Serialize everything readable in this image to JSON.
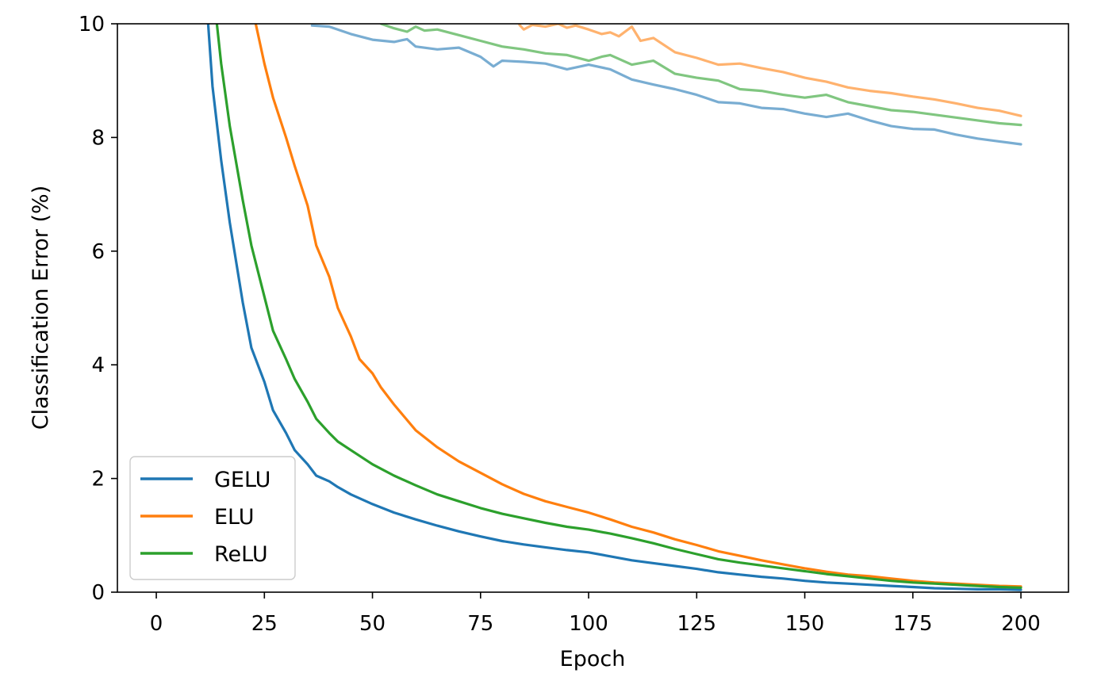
{
  "chart_data": {
    "type": "line",
    "xlabel": "Epoch",
    "ylabel": "Classification Error (%)",
    "xlim": [
      -9,
      211
    ],
    "ylim": [
      0,
      10
    ],
    "xticks": [
      0,
      25,
      50,
      75,
      100,
      125,
      150,
      175,
      200
    ],
    "yticks": [
      0,
      2,
      4,
      6,
      8,
      10
    ],
    "grid": false,
    "legend_position": "lower-left",
    "train_series": [
      {
        "name": "GELU",
        "color": "#1f77b4",
        "x": [
          12,
          13,
          15,
          17,
          20,
          22,
          25,
          27,
          30,
          32,
          35,
          37,
          40,
          42,
          45,
          50,
          55,
          60,
          65,
          70,
          75,
          80,
          85,
          90,
          95,
          100,
          105,
          110,
          115,
          120,
          125,
          130,
          135,
          140,
          145,
          150,
          155,
          160,
          165,
          170,
          175,
          180,
          185,
          190,
          195,
          200
        ],
        "y": [
          10,
          8.9,
          7.6,
          6.5,
          5.1,
          4.3,
          3.7,
          3.2,
          2.8,
          2.5,
          2.25,
          2.05,
          1.95,
          1.85,
          1.72,
          1.55,
          1.4,
          1.28,
          1.17,
          1.07,
          0.98,
          0.9,
          0.84,
          0.79,
          0.74,
          0.7,
          0.63,
          0.56,
          0.51,
          0.46,
          0.41,
          0.35,
          0.31,
          0.27,
          0.24,
          0.2,
          0.17,
          0.15,
          0.13,
          0.11,
          0.09,
          0.07,
          0.06,
          0.05,
          0.05,
          0.04
        ]
      },
      {
        "name": "ELU",
        "color": "#ff7f0e",
        "x": [
          23,
          25,
          27,
          30,
          32,
          35,
          37,
          40,
          42,
          45,
          47,
          50,
          52,
          55,
          60,
          65,
          70,
          75,
          80,
          85,
          90,
          95,
          100,
          105,
          110,
          115,
          120,
          125,
          130,
          135,
          140,
          145,
          150,
          155,
          160,
          165,
          170,
          175,
          180,
          185,
          190,
          195,
          200
        ],
        "y": [
          10,
          9.3,
          8.7,
          8.0,
          7.5,
          6.8,
          6.1,
          5.55,
          5.0,
          4.5,
          4.1,
          3.85,
          3.6,
          3.3,
          2.85,
          2.55,
          2.3,
          2.1,
          1.9,
          1.73,
          1.6,
          1.5,
          1.4,
          1.28,
          1.15,
          1.05,
          0.93,
          0.83,
          0.72,
          0.64,
          0.56,
          0.49,
          0.42,
          0.36,
          0.31,
          0.28,
          0.24,
          0.2,
          0.17,
          0.15,
          0.13,
          0.11,
          0.1
        ]
      },
      {
        "name": "ReLU",
        "color": "#2ca02c",
        "x": [
          14,
          15,
          17,
          20,
          22,
          25,
          27,
          30,
          32,
          35,
          37,
          40,
          42,
          45,
          50,
          55,
          60,
          65,
          70,
          75,
          80,
          85,
          90,
          95,
          100,
          105,
          110,
          115,
          120,
          125,
          130,
          135,
          140,
          145,
          150,
          155,
          160,
          165,
          170,
          175,
          180,
          185,
          190,
          195,
          200
        ],
        "y": [
          10,
          9.3,
          8.2,
          6.9,
          6.1,
          5.2,
          4.6,
          4.1,
          3.75,
          3.35,
          3.05,
          2.8,
          2.65,
          2.5,
          2.25,
          2.05,
          1.88,
          1.72,
          1.6,
          1.48,
          1.38,
          1.3,
          1.22,
          1.15,
          1.1,
          1.03,
          0.95,
          0.86,
          0.76,
          0.67,
          0.58,
          0.52,
          0.47,
          0.42,
          0.37,
          0.32,
          0.28,
          0.24,
          0.2,
          0.17,
          0.15,
          0.13,
          0.11,
          0.09,
          0.08
        ]
      }
    ],
    "test_series": [
      {
        "color": "#1f77b4",
        "x": [
          36,
          40,
          45,
          50,
          55,
          58,
          60,
          65,
          70,
          75,
          78,
          80,
          85,
          90,
          95,
          100,
          105,
          110,
          115,
          120,
          125,
          130,
          135,
          140,
          145,
          150,
          155,
          160,
          165,
          170,
          175,
          180,
          185,
          190,
          195,
          200
        ],
        "y": [
          9.97,
          9.95,
          9.82,
          9.72,
          9.68,
          9.73,
          9.6,
          9.55,
          9.58,
          9.42,
          9.25,
          9.35,
          9.33,
          9.3,
          9.2,
          9.28,
          9.2,
          9.02,
          8.93,
          8.85,
          8.75,
          8.62,
          8.6,
          8.52,
          8.5,
          8.42,
          8.36,
          8.42,
          8.3,
          8.2,
          8.15,
          8.14,
          8.05,
          7.98,
          7.93,
          7.88
        ]
      },
      {
        "color": "#ff7f0e",
        "x": [
          84,
          85,
          87,
          90,
          93,
          95,
          97,
          100,
          103,
          105,
          107,
          110,
          112,
          115,
          120,
          125,
          130,
          135,
          140,
          145,
          150,
          155,
          160,
          165,
          170,
          175,
          180,
          185,
          190,
          195,
          200
        ],
        "y": [
          9.98,
          9.9,
          9.98,
          9.95,
          10.0,
          9.93,
          9.97,
          9.9,
          9.82,
          9.85,
          9.78,
          9.95,
          9.7,
          9.75,
          9.5,
          9.4,
          9.28,
          9.3,
          9.22,
          9.15,
          9.05,
          8.98,
          8.88,
          8.82,
          8.78,
          8.72,
          8.67,
          8.6,
          8.52,
          8.47,
          8.38
        ]
      },
      {
        "color": "#2ca02c",
        "x": [
          52,
          55,
          58,
          60,
          62,
          65,
          70,
          75,
          80,
          85,
          90,
          95,
          100,
          103,
          105,
          110,
          115,
          120,
          125,
          130,
          135,
          140,
          145,
          150,
          155,
          160,
          165,
          170,
          175,
          180,
          185,
          190,
          195,
          200
        ],
        "y": [
          10.0,
          9.92,
          9.86,
          9.95,
          9.88,
          9.9,
          9.8,
          9.7,
          9.6,
          9.55,
          9.48,
          9.45,
          9.35,
          9.42,
          9.45,
          9.28,
          9.35,
          9.12,
          9.05,
          9.0,
          8.85,
          8.82,
          8.75,
          8.7,
          8.75,
          8.62,
          8.55,
          8.48,
          8.45,
          8.4,
          8.35,
          8.3,
          8.25,
          8.22
        ]
      }
    ]
  }
}
